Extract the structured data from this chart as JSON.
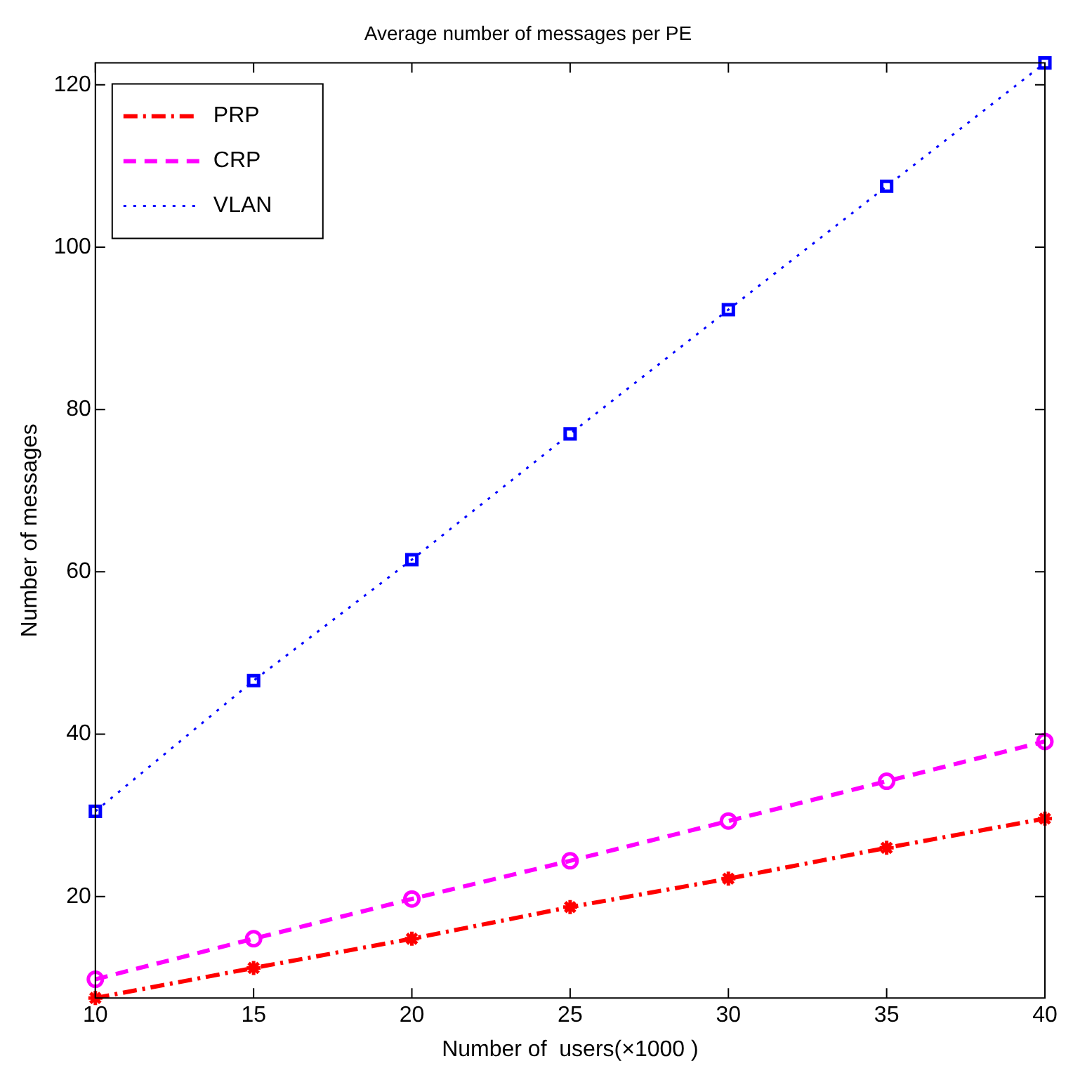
{
  "chart_data": {
    "type": "line",
    "title": "Average number of messages per PE",
    "xlabel": "Number of  users(×1000 )",
    "ylabel": "Number of messages",
    "x": [
      10,
      15,
      20,
      25,
      30,
      35,
      40
    ],
    "series": [
      {
        "name": "PRP",
        "color": "#ff0000",
        "marker": "cross",
        "line_style": "dashdot",
        "values": [
          7.5,
          11.2,
          14.8,
          18.7,
          22.2,
          26.0,
          29.6
        ]
      },
      {
        "name": "CRP",
        "color": "#ff00ff",
        "marker": "circle",
        "line_style": "dashed",
        "values": [
          9.8,
          14.8,
          19.7,
          24.4,
          29.3,
          34.2,
          39.1
        ]
      },
      {
        "name": "VLAN",
        "color": "#0000ff",
        "marker": "square",
        "line_style": "dotted",
        "values": [
          30.5,
          46.6,
          61.5,
          77.0,
          92.3,
          107.5,
          122.7
        ]
      }
    ],
    "xlim": [
      10,
      40
    ],
    "xticks": [
      10,
      15,
      20,
      25,
      30,
      35,
      40
    ],
    "ylim": [
      7.5,
      122.7
    ],
    "yticks": [
      20,
      40,
      60,
      80,
      100,
      120
    ],
    "grid": false,
    "legend": "top left"
  }
}
